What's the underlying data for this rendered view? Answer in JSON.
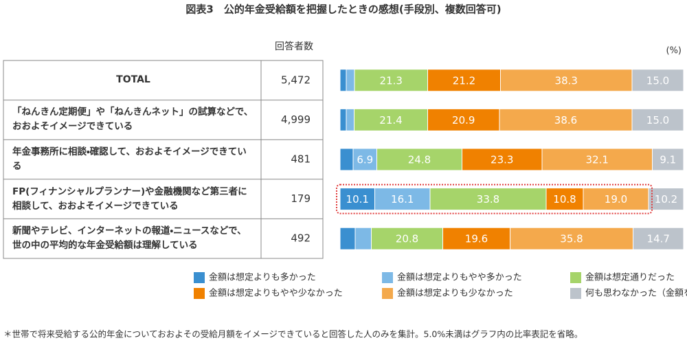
{
  "chart_data": {
    "type": "stacked_bar_horizontal",
    "title": "図表3　公的年金受給額を把握したときの感想(手段別、複数回答可)",
    "count_header": "回答者数",
    "unit": "(%)",
    "categories": [
      "TOTAL",
      "「ねんきん定期便」や「ねんきんネット」の試算などで、おおよそイメージできている",
      "年金事務所に相談・確認して、おおよそイメージできている",
      "FP(フィナンシャルプランナー)や金融機関など第三者に相談して、おおよそイメージできている",
      "新聞やテレビ、インターネットの報道・ニュースなどで、世の中の平均的な年金受給額は理解している"
    ],
    "counts": [
      "5,472",
      "4,999",
      "481",
      "179",
      "492"
    ],
    "xlim": [
      0,
      100
    ],
    "series": [
      {
        "name": "金額は想定よりも多かった",
        "color": "#3a8fd0",
        "values": [
          1.8,
          1.8,
          3.8,
          10.1,
          4.4
        ],
        "value_labels": [
          null,
          null,
          null,
          "10.1",
          null
        ]
      },
      {
        "name": "金額は想定よりもやや多かった",
        "color": "#7db9e6",
        "values": [
          2.4,
          2.3,
          6.9,
          16.1,
          4.7
        ],
        "value_labels": [
          null,
          null,
          "6.9",
          "16.1",
          null
        ]
      },
      {
        "name": "金額は想定通りだった",
        "color": "#a6d46a",
        "values": [
          21.3,
          21.4,
          24.8,
          33.8,
          20.8
        ],
        "value_labels": [
          "21.3",
          "21.4",
          "24.8",
          "33.8",
          "20.8"
        ]
      },
      {
        "name": "金額は想定よりもやや少なかった",
        "color": "#f08100",
        "values": [
          21.2,
          20.9,
          23.3,
          10.8,
          19.6
        ],
        "value_labels": [
          "21.2",
          "20.9",
          "23.3",
          "10.8",
          "19.6"
        ]
      },
      {
        "name": "金額は想定よりも少なかった",
        "color": "#f4a94c",
        "values": [
          38.3,
          38.6,
          32.1,
          19.0,
          35.8
        ],
        "value_labels": [
          "38.3",
          "38.6",
          "32.1",
          "19.0",
          "35.8"
        ]
      },
      {
        "name": "何も思わなかった（金額を想定していなかったので多いとも少ないとも思わなかった）",
        "color": "#bcc3cb",
        "values": [
          15.0,
          15.0,
          9.1,
          10.2,
          14.7
        ],
        "value_labels": [
          "15.0",
          "15.0",
          "9.1",
          "10.2",
          "14.7"
        ]
      }
    ],
    "footnote": "＊世帯で将来受給する公的年金についておおよその受給月額をイメージできていると回答した人のみを集計。5.0%未満はグラフ内の比率表記を省略。"
  }
}
